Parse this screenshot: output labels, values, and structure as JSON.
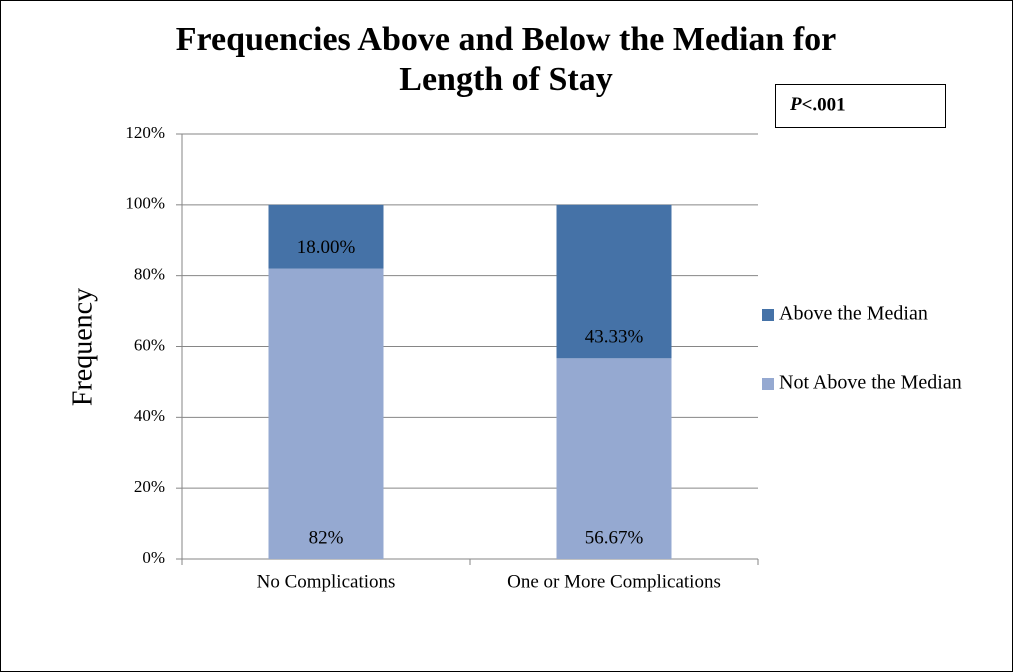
{
  "chart_data": {
    "type": "stacked_bar",
    "title": [
      "Frequencies Above and Below the Median for",
      "Length of Stay"
    ],
    "annotation": "P<.001",
    "y_label": "Frequency",
    "categories": [
      "No Complications",
      "One or More Complications"
    ],
    "series": [
      {
        "name": "Not Above the Median",
        "color": "#95a9d1",
        "values": [
          82,
          56.67
        ],
        "value_labels": [
          "82%",
          "56.67%"
        ]
      },
      {
        "name": "Above the Median",
        "color": "#4572a7",
        "values": [
          18,
          43.33
        ],
        "value_labels": [
          "18.00%",
          "43.33%"
        ]
      }
    ],
    "ylim": [
      0,
      120
    ],
    "yticks": [
      {
        "value": 0,
        "label": "0%"
      },
      {
        "value": 20,
        "label": "20%"
      },
      {
        "value": 40,
        "label": "40%"
      },
      {
        "value": 60,
        "label": "60%"
      },
      {
        "value": 80,
        "label": "80%"
      },
      {
        "value": 100,
        "label": "100%"
      },
      {
        "value": 120,
        "label": "120%"
      }
    ],
    "grid": true,
    "legend": "right"
  }
}
